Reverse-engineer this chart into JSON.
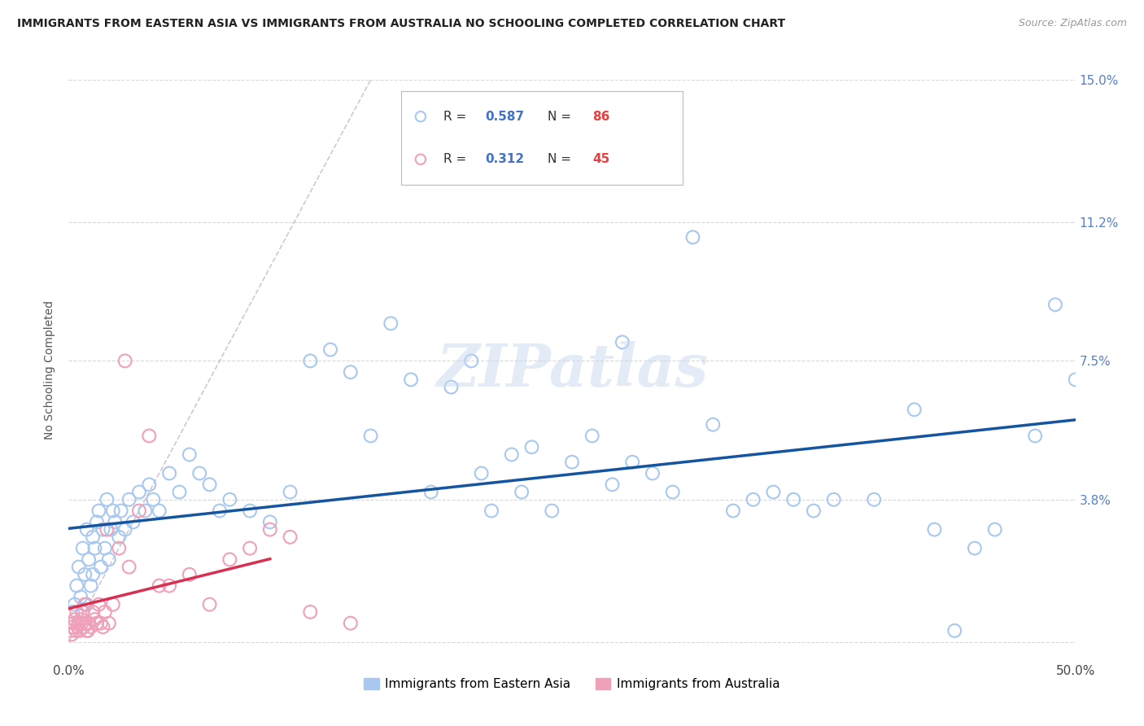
{
  "title": "IMMIGRANTS FROM EASTERN ASIA VS IMMIGRANTS FROM AUSTRALIA NO SCHOOLING COMPLETED CORRELATION CHART",
  "source": "Source: ZipAtlas.com",
  "ylabel": "No Schooling Completed",
  "ytick_labels": [
    "",
    "3.8%",
    "7.5%",
    "11.2%",
    "15.0%"
  ],
  "ytick_values": [
    0.0,
    3.8,
    7.5,
    11.2,
    15.0
  ],
  "xlim": [
    0.0,
    50.0
  ],
  "ylim": [
    -0.5,
    15.0
  ],
  "legend_blue_r": "0.587",
  "legend_blue_n": "86",
  "legend_pink_r": "0.312",
  "legend_pink_n": "45",
  "legend_blue_label": "Immigrants from Eastern Asia",
  "legend_pink_label": "Immigrants from Australia",
  "blue_color": "#a8c8f0",
  "pink_color": "#f0a0b8",
  "line_blue": "#1555a0",
  "line_pink": "#d83050",
  "diagonal_color": "#c8b8c8",
  "watermark_color": "#c8d8f0",
  "grid_color": "#d8d8d8",
  "r_value_color": "#4472c4",
  "n_value_color": "#e84040",
  "blue_x": [
    0.2,
    0.3,
    0.4,
    0.5,
    0.5,
    0.6,
    0.7,
    0.7,
    0.8,
    0.9,
    0.9,
    1.0,
    1.0,
    1.1,
    1.2,
    1.2,
    1.3,
    1.4,
    1.5,
    1.6,
    1.7,
    1.8,
    1.9,
    2.0,
    2.1,
    2.2,
    2.3,
    2.5,
    2.6,
    2.8,
    3.0,
    3.2,
    3.5,
    3.8,
    4.0,
    4.2,
    4.5,
    5.0,
    5.5,
    6.0,
    6.5,
    7.0,
    7.5,
    8.0,
    9.0,
    10.0,
    11.0,
    12.0,
    13.0,
    14.0,
    15.0,
    16.0,
    17.0,
    18.0,
    19.0,
    20.0,
    21.0,
    22.0,
    23.0,
    24.0,
    25.0,
    26.0,
    27.0,
    28.0,
    29.0,
    30.0,
    32.0,
    33.0,
    34.0,
    35.0,
    36.0,
    38.0,
    40.0,
    42.0,
    44.0,
    45.0,
    46.0,
    48.0,
    49.0,
    50.0,
    27.5,
    31.0,
    20.5,
    22.5,
    37.0,
    43.0
  ],
  "blue_y": [
    0.8,
    1.0,
    1.5,
    2.0,
    0.5,
    1.2,
    0.8,
    2.5,
    1.8,
    3.0,
    1.0,
    2.2,
    0.5,
    1.5,
    2.8,
    1.8,
    2.5,
    3.2,
    3.5,
    2.0,
    3.0,
    2.5,
    3.8,
    2.2,
    3.0,
    3.5,
    3.2,
    2.8,
    3.5,
    3.0,
    3.8,
    3.2,
    4.0,
    3.5,
    4.2,
    3.8,
    3.5,
    4.5,
    4.0,
    5.0,
    4.5,
    4.2,
    3.5,
    3.8,
    3.5,
    3.2,
    4.0,
    7.5,
    7.8,
    7.2,
    5.5,
    8.5,
    7.0,
    4.0,
    6.8,
    7.5,
    3.5,
    5.0,
    5.2,
    3.5,
    4.8,
    5.5,
    4.2,
    4.8,
    4.5,
    4.0,
    5.8,
    3.5,
    3.8,
    4.0,
    3.8,
    3.8,
    3.8,
    6.2,
    0.3,
    2.5,
    3.0,
    5.5,
    9.0,
    7.0,
    8.0,
    10.8,
    4.5,
    4.0,
    3.5,
    3.0
  ],
  "pink_x": [
    0.1,
    0.15,
    0.2,
    0.25,
    0.3,
    0.35,
    0.4,
    0.45,
    0.5,
    0.55,
    0.6,
    0.65,
    0.7,
    0.75,
    0.8,
    0.85,
    0.9,
    0.95,
    1.0,
    1.1,
    1.2,
    1.3,
    1.4,
    1.5,
    1.6,
    1.7,
    1.8,
    2.0,
    2.2,
    2.5,
    3.0,
    3.5,
    4.0,
    5.0,
    6.0,
    7.0,
    8.0,
    9.0,
    10.0,
    12.0,
    14.0,
    1.9,
    2.8,
    4.5,
    11.0
  ],
  "pink_y": [
    0.3,
    0.2,
    0.4,
    0.5,
    0.6,
    0.3,
    0.8,
    0.4,
    0.5,
    0.3,
    0.6,
    0.5,
    0.8,
    0.4,
    1.0,
    0.5,
    0.3,
    0.3,
    0.5,
    0.4,
    0.8,
    0.6,
    0.5,
    1.0,
    0.5,
    0.4,
    0.8,
    0.5,
    1.0,
    2.5,
    2.0,
    3.5,
    5.5,
    1.5,
    1.8,
    1.0,
    2.2,
    2.5,
    3.0,
    0.8,
    0.5,
    3.0,
    7.5,
    1.5,
    2.8
  ]
}
